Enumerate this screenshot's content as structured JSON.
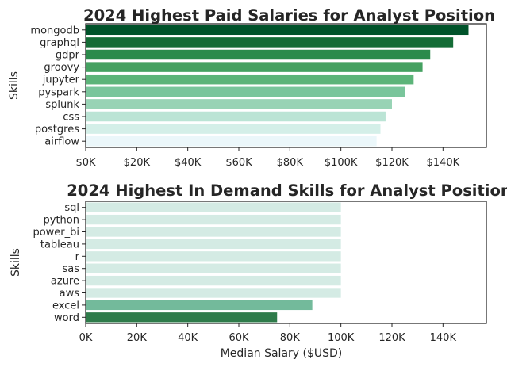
{
  "chart_data": [
    {
      "type": "bar",
      "orientation": "horizontal",
      "title": "2024 Highest Paid Salaries for Analyst Position",
      "ylabel": "Skills",
      "xlabel": "",
      "xlim": [
        0,
        157000
      ],
      "xticks": [
        0,
        20000,
        40000,
        60000,
        80000,
        100000,
        120000,
        140000
      ],
      "xtick_labels": [
        "$0K",
        "$20K",
        "$40K",
        "$60K",
        "$80K",
        "$100K",
        "$120K",
        "$140K"
      ],
      "categories": [
        "mongodb",
        "graphql",
        "gdpr",
        "groovy",
        "jupyter",
        "pyspark",
        "splunk",
        "css",
        "postgres",
        "airflow"
      ],
      "values": [
        150000,
        144000,
        135000,
        132000,
        128500,
        125000,
        120000,
        117500,
        115500,
        114000
      ],
      "colors": [
        "#00532a",
        "#146c36",
        "#2b8a4b",
        "#45a161",
        "#5cb479",
        "#79c59b",
        "#98d3b5",
        "#bbe4d5",
        "#d4efe8",
        "#ebf7fa"
      ],
      "grid": false,
      "legend": false
    },
    {
      "type": "bar",
      "orientation": "horizontal",
      "title": "2024 Highest In Demand Skills for Analyst Position",
      "ylabel": "Skills",
      "xlabel": "Median Salary ($USD)",
      "xlim": [
        0,
        157000
      ],
      "xticks": [
        0,
        20000,
        40000,
        60000,
        80000,
        100000,
        120000,
        140000
      ],
      "xtick_labels": [
        "0K",
        "20K",
        "40K",
        "60K",
        "80K",
        "100K",
        "120K",
        "140K"
      ],
      "categories": [
        "sql",
        "python",
        "power_bi",
        "tableau",
        "r",
        "sas",
        "azure",
        "aws",
        "excel",
        "word"
      ],
      "values": [
        100000,
        100000,
        100000,
        100000,
        100000,
        100000,
        100000,
        100000,
        88800,
        75000
      ],
      "colors": [
        "#d4ebe4",
        "#d4ebe4",
        "#d4ebe4",
        "#d4ebe4",
        "#d4ebe4",
        "#d4ebe4",
        "#d4ebe4",
        "#d4ebe4",
        "#73ba9b",
        "#2e7b4a"
      ],
      "grid": false,
      "legend": false
    }
  ]
}
